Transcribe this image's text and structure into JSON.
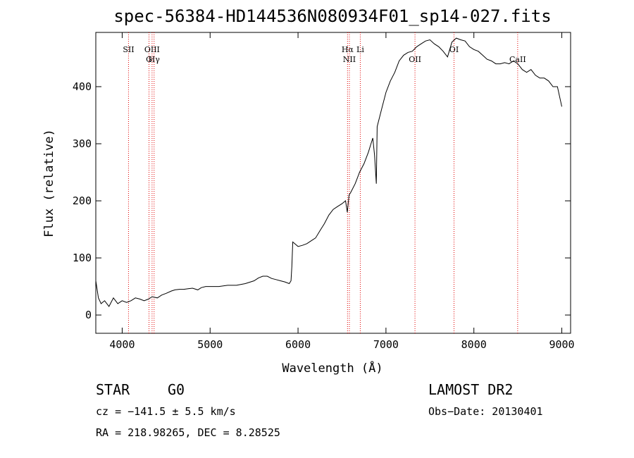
{
  "chart_data": {
    "type": "line",
    "title": "spec-56384-HD144536N080934F01_sp14-027.fits",
    "xlabel": "Wavelength (Å)",
    "ylabel": "Flux (relative)",
    "xlim": [
      3700,
      9100
    ],
    "ylim": [
      -32,
      495
    ],
    "x_ticks": [
      4000,
      5000,
      6000,
      7000,
      8000,
      9000
    ],
    "x_tick_labels": [
      "4000",
      "5000",
      "6000",
      "7000",
      "8000",
      "9000"
    ],
    "y_ticks": [
      0,
      100,
      200,
      300,
      400
    ],
    "y_tick_labels": [
      "0",
      "100",
      "200",
      "300",
      "400"
    ],
    "grid": false,
    "series": [
      {
        "color": "#000000",
        "x": [
          3700,
          3730,
          3760,
          3800,
          3850,
          3900,
          3950,
          4000,
          4050,
          4100,
          4150,
          4200,
          4250,
          4300,
          4340,
          4400,
          4450,
          4500,
          4560,
          4600,
          4650,
          4700,
          4750,
          4800,
          4860,
          4900,
          4950,
          5000,
          5100,
          5200,
          5300,
          5400,
          5500,
          5550,
          5600,
          5650,
          5700,
          5750,
          5800,
          5850,
          5900,
          5920,
          5930,
          5940,
          6000,
          6050,
          6100,
          6150,
          6200,
          6250,
          6300,
          6350,
          6400,
          6450,
          6500,
          6540,
          6560,
          6580,
          6600,
          6650,
          6700,
          6750,
          6800,
          6820,
          6850,
          6870,
          6890,
          6900,
          6950,
          7000,
          7050,
          7100,
          7150,
          7200,
          7250,
          7300,
          7350,
          7400,
          7450,
          7500,
          7550,
          7600,
          7650,
          7700,
          7750,
          7800,
          7850,
          7900,
          7950,
          8000,
          8050,
          8100,
          8150,
          8200,
          8250,
          8300,
          8350,
          8400,
          8450,
          8500,
          8550,
          8600,
          8650,
          8700,
          8750,
          8800,
          8850,
          8900,
          8950,
          9000
        ],
        "values": [
          60,
          30,
          20,
          25,
          15,
          30,
          20,
          25,
          22,
          25,
          30,
          28,
          25,
          28,
          32,
          30,
          35,
          38,
          42,
          44,
          45,
          45,
          46,
          47,
          44,
          48,
          50,
          50,
          50,
          52,
          52,
          55,
          60,
          65,
          68,
          68,
          64,
          62,
          60,
          58,
          55,
          60,
          85,
          128,
          120,
          122,
          125,
          130,
          135,
          148,
          160,
          175,
          185,
          190,
          195,
          200,
          180,
          210,
          215,
          230,
          250,
          265,
          285,
          295,
          310,
          280,
          230,
          330,
          360,
          390,
          410,
          425,
          445,
          455,
          460,
          462,
          470,
          475,
          480,
          482,
          475,
          470,
          462,
          452,
          478,
          485,
          482,
          480,
          470,
          465,
          462,
          455,
          448,
          445,
          440,
          440,
          442,
          440,
          445,
          440,
          430,
          425,
          430,
          420,
          415,
          415,
          410,
          400,
          400,
          365
        ]
      }
    ],
    "line_markers": [
      {
        "label": "SII",
        "x": 4072
      },
      {
        "label": "G",
        "x": 4305
      },
      {
        "label": "OIII",
        "x": 4340
      },
      {
        "label": "Hγ",
        "x": 4363
      },
      {
        "label": "Hα",
        "x": 6563
      },
      {
        "label": "NII",
        "x": 6584
      },
      {
        "label": "Li",
        "x": 6708
      },
      {
        "label": "OII",
        "x": 7330
      },
      {
        "label": "OI",
        "x": 7774
      },
      {
        "label": "CaII",
        "x": 8498
      }
    ],
    "marker_color": "#e00000"
  },
  "info": {
    "object_type": "STAR",
    "subclass": "G0",
    "survey": "LAMOST DR2",
    "cz": "cz = −141.5 ± 5.5 km/s",
    "obs_date": "Obs−Date: 20130401",
    "coords": "RA = 218.98265, DEC =   8.28525"
  }
}
